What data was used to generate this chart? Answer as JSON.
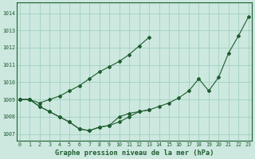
{
  "title": "Graphe pression niveau de la mer (hPa)",
  "ylabel_ticks": [
    1007,
    1008,
    1009,
    1010,
    1011,
    1012,
    1013,
    1014
  ],
  "xlim": [
    -0.3,
    23.3
  ],
  "ylim": [
    1006.6,
    1014.6
  ],
  "bg_color": "#cce8df",
  "grid_color": "#99ccbb",
  "line_color": "#1e5c2e",
  "line_upper_x": [
    0,
    1,
    2,
    3,
    4,
    5,
    6,
    7,
    8,
    9,
    10,
    11,
    12,
    13
  ],
  "line_upper_y": [
    1009.0,
    1009.0,
    1008.8,
    1009.0,
    1009.2,
    1009.5,
    1009.8,
    1010.2,
    1010.6,
    1010.9,
    1011.2,
    1011.6,
    1012.1,
    1012.6
  ],
  "line_lower_x": [
    0,
    1,
    2,
    3,
    4,
    5,
    6,
    7,
    8,
    9,
    10,
    11,
    12,
    13
  ],
  "line_lower_y": [
    1009.0,
    1009.0,
    1008.6,
    1008.3,
    1008.0,
    1007.7,
    1007.3,
    1007.2,
    1007.4,
    1007.5,
    1007.7,
    1008.0,
    1008.3,
    1008.4
  ],
  "line_full_x": [
    0,
    1,
    2,
    3,
    4,
    5,
    6,
    7,
    8,
    9,
    10,
    11,
    12,
    13,
    14,
    15,
    16,
    17,
    18,
    19,
    20,
    21,
    22,
    23
  ],
  "line_full_y": [
    1009.0,
    1009.0,
    1008.6,
    1008.3,
    1008.0,
    1007.7,
    1007.3,
    1007.2,
    1007.4,
    1007.5,
    1008.0,
    1008.2,
    1008.3,
    1008.4,
    1008.6,
    1008.8,
    1009.1,
    1009.5,
    1010.2,
    1009.5,
    1010.3,
    1011.7,
    1012.7,
    1013.8
  ]
}
